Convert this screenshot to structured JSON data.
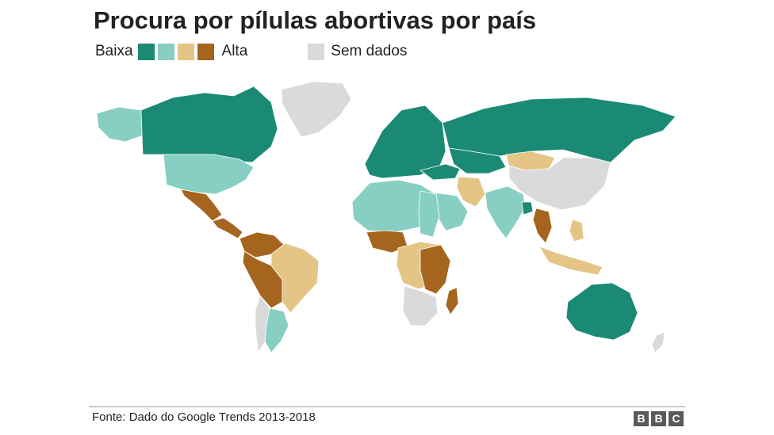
{
  "title": "Procura por pílulas abortivas por país",
  "legend": {
    "low_label": "Baixa",
    "high_label": "Alta",
    "no_data_label": "Sem dados",
    "scale_colors": [
      "#1a8a75",
      "#87cfc2",
      "#e4c585",
      "#a5651f"
    ],
    "no_data_color": "#dadada"
  },
  "source": "Fonte: Dado do Google Trends 2013-2018",
  "logo_text": [
    "B",
    "B",
    "C"
  ],
  "map_data": {
    "type": "choropleth",
    "levels": [
      "Baixa",
      "",
      "",
      "Alta"
    ],
    "countries": {
      "Canada": 1,
      "Russia": 1,
      "Australia": 1,
      "Western Europe": 1,
      "Turkey": 1,
      "Kazakhstan": 1,
      "Bangladesh": 1,
      "Iraq": 1,
      "United States": 2,
      "Alaska": 2,
      "Argentina": 2,
      "North Africa": 2,
      "Egypt": 2,
      "Saudi Arabia": 2,
      "India": 2,
      "Sudan": 2,
      "Brazil": 3,
      "Mongolia": 3,
      "Iran": 3,
      "Indonesia": 3,
      "Philippines": 3,
      "Angola": 3,
      "Congo": 3,
      "Uruguay": 3,
      "Mexico": 4,
      "Central America": 4,
      "Colombia": 4,
      "Venezuela": 4,
      "Peru": 4,
      "Bolivia": 4,
      "Nigeria": 4,
      "Ghana": 4,
      "Madagascar": 4,
      "Zambia": 4,
      "Thailand": 4,
      "Greenland": 0,
      "China": 0,
      "Southern Africa": 0,
      "Chile": 0,
      "Antarctica": 0
    }
  }
}
